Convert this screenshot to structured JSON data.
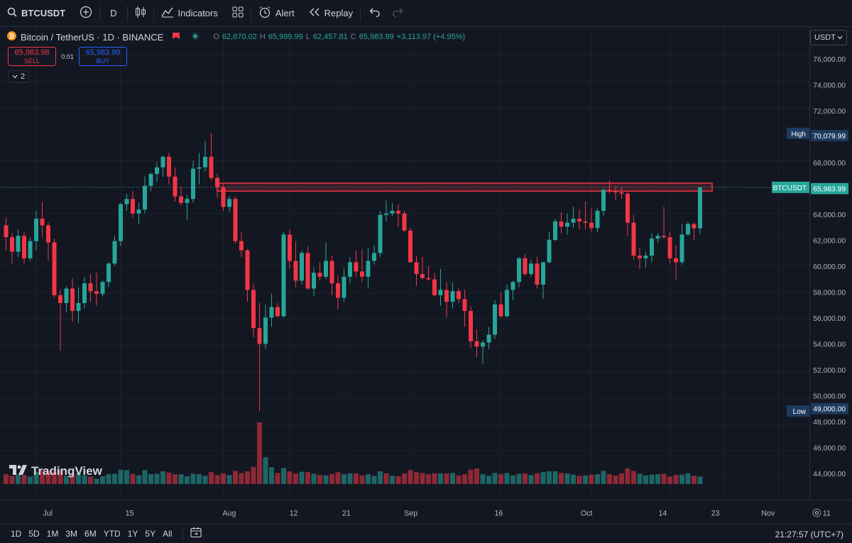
{
  "toolbar": {
    "symbol": "BTCUSDT",
    "interval": "D",
    "indicators_label": "Indicators",
    "alert_label": "Alert",
    "replay_label": "Replay"
  },
  "legend": {
    "title": "Bitcoin / TetherUS · 1D · BINANCE",
    "o_label": "O",
    "o": "62,870.02",
    "h_label": "H",
    "h": "65,999.99",
    "l_label": "L",
    "l": "62,457.81",
    "c_label": "C",
    "c": "65,983.99",
    "change": "+3,113.97 (+4.95%)"
  },
  "trade": {
    "sell_price": "65,983.98",
    "sell_label": "SELL",
    "spread": "0.01",
    "buy_price": "65,983.99",
    "buy_label": "BUY",
    "indicators_count": "2"
  },
  "currency": "USDT",
  "brand": "TradingView",
  "price_labels": {
    "high_label": "High",
    "high": "70,079.99",
    "current_label": "BTCUSDT",
    "current": "65,983.99",
    "low_label": "Low",
    "low": "49,000.00"
  },
  "colors": {
    "up": "#26a69a",
    "down": "#f23645",
    "background": "#131722",
    "accent": "#2962ff"
  },
  "bottom": {
    "timeframes": [
      "1D",
      "5D",
      "1M",
      "3M",
      "6M",
      "YTD",
      "1Y",
      "5Y",
      "All"
    ],
    "clock": "21:27:57 (UTC+7)"
  },
  "chart_data": {
    "type": "candlestick",
    "y_range": [
      43000,
      77500
    ],
    "y_ticks": [
      "44,000.00",
      "46,000.00",
      "48,000.00",
      "50,000.00",
      "52,000.00",
      "54,000.00",
      "56,000.00",
      "58,000.00",
      "60,000.00",
      "62,000.00",
      "64,000.00",
      "66,000.00",
      "68,000.00",
      "72,000.00",
      "74,000.00",
      "76,000.00"
    ],
    "x_ticks": [
      {
        "label": "Jul",
        "i": 5
      },
      {
        "label": "15",
        "i": 19
      },
      {
        "label": "Aug",
        "i": 36
      },
      {
        "label": "12",
        "i": 47
      },
      {
        "label": "21",
        "i": 56
      },
      {
        "label": "Sep",
        "i": 67
      },
      {
        "label": "16",
        "i": 82
      },
      {
        "label": "Oct",
        "i": 97
      },
      {
        "label": "14",
        "i": 110
      },
      {
        "label": "23",
        "i": 119
      },
      {
        "label": "Nov",
        "i": 128
      },
      {
        "label": "11",
        "i": 138
      }
    ],
    "resistance_zone": {
      "from": 65700,
      "to": 66300,
      "start_i": 35,
      "end_i": 117
    },
    "candles": [
      [
        63100,
        63700,
        61200,
        62200
      ],
      [
        62200,
        62500,
        60200,
        61100
      ],
      [
        61100,
        62800,
        60700,
        62300
      ],
      [
        62300,
        62600,
        60200,
        60600
      ],
      [
        60600,
        62200,
        60400,
        61900
      ],
      [
        61900,
        64200,
        61200,
        63600
      ],
      [
        63600,
        64900,
        62200,
        63100
      ],
      [
        63100,
        63300,
        60400,
        61800
      ],
      [
        61800,
        62100,
        57600,
        57800
      ],
      [
        57800,
        58200,
        53600,
        57200
      ],
      [
        57200,
        58500,
        56500,
        58300
      ],
      [
        58300,
        59100,
        55800,
        56600
      ],
      [
        56600,
        58400,
        55700,
        57200
      ],
      [
        57200,
        59200,
        56800,
        58700
      ],
      [
        58700,
        59400,
        57300,
        58100
      ],
      [
        58100,
        59500,
        57000,
        57900
      ],
      [
        57900,
        58900,
        57700,
        58800
      ],
      [
        58800,
        60300,
        58400,
        60200
      ],
      [
        60200,
        62300,
        60000,
        61900
      ],
      [
        61900,
        64800,
        61500,
        64700
      ],
      [
        64700,
        65500,
        64200,
        65100
      ],
      [
        65100,
        65700,
        63700,
        64000
      ],
      [
        64000,
        64800,
        63200,
        64300
      ],
      [
        64300,
        66800,
        64000,
        66100
      ],
      [
        66100,
        67100,
        65700,
        67000
      ],
      [
        67000,
        67900,
        66400,
        67500
      ],
      [
        67500,
        68400,
        66800,
        68300
      ],
      [
        68300,
        68600,
        66200,
        66800
      ],
      [
        66800,
        67500,
        64900,
        65300
      ],
      [
        65300,
        66000,
        64600,
        64800
      ],
      [
        64800,
        65400,
        63500,
        65100
      ],
      [
        65100,
        68000,
        64800,
        67400
      ],
      [
        67400,
        68600,
        66200,
        67500
      ],
      [
        67500,
        69500,
        67200,
        68300
      ],
      [
        68300,
        70080,
        66500,
        66700
      ],
      [
        66700,
        67000,
        65200,
        66000
      ],
      [
        66000,
        66200,
        64200,
        64500
      ],
      [
        64500,
        65300,
        64100,
        65100
      ],
      [
        65100,
        65300,
        61700,
        61900
      ],
      [
        61900,
        62600,
        60700,
        61200
      ],
      [
        61200,
        61300,
        57300,
        58200
      ],
      [
        58200,
        58700,
        54600,
        55300
      ],
      [
        55300,
        57200,
        49000,
        54100
      ],
      [
        54100,
        57100,
        53700,
        56100
      ],
      [
        56100,
        57900,
        55400,
        56900
      ],
      [
        56900,
        57200,
        56100,
        56200
      ],
      [
        56200,
        62600,
        56100,
        62400
      ],
      [
        62400,
        62800,
        59800,
        60400
      ],
      [
        60400,
        61900,
        58400,
        58900
      ],
      [
        58900,
        61200,
        58600,
        61000
      ],
      [
        61000,
        61500,
        58200,
        58300
      ],
      [
        58300,
        59900,
        57700,
        59500
      ],
      [
        59500,
        60300,
        58900,
        59200
      ],
      [
        59200,
        61800,
        59000,
        60400
      ],
      [
        60400,
        60800,
        57800,
        58700
      ],
      [
        58700,
        59300,
        56700,
        57600
      ],
      [
        57600,
        59800,
        57300,
        59200
      ],
      [
        59200,
        60700,
        58700,
        60300
      ],
      [
        60300,
        61200,
        59200,
        59600
      ],
      [
        59600,
        61300,
        58800,
        59200
      ],
      [
        59200,
        61400,
        58300,
        60400
      ],
      [
        60400,
        61600,
        60100,
        61000
      ],
      [
        61000,
        64200,
        60700,
        63900
      ],
      [
        63900,
        65000,
        63400,
        64000
      ],
      [
        64000,
        64800,
        63800,
        64200
      ],
      [
        64200,
        64700,
        63000,
        64000
      ],
      [
        64000,
        64200,
        62600,
        62700
      ],
      [
        62700,
        62900,
        60400,
        60300
      ],
      [
        60300,
        60800,
        58500,
        59400
      ],
      [
        59400,
        60700,
        59000,
        59100
      ],
      [
        59100,
        60000,
        58900,
        59000
      ],
      [
        59000,
        59500,
        57700,
        57800
      ],
      [
        57800,
        59800,
        57000,
        58200
      ],
      [
        58200,
        58800,
        56100,
        57300
      ],
      [
        57300,
        58800,
        56800,
        58100
      ],
      [
        58100,
        58300,
        57200,
        57500
      ],
      [
        57500,
        58200,
        55400,
        56600
      ],
      [
        56600,
        57000,
        53800,
        54300
      ],
      [
        54300,
        55200,
        53100,
        53900
      ],
      [
        53900,
        54400,
        52600,
        54200
      ],
      [
        54200,
        55400,
        53700,
        54800
      ],
      [
        54800,
        57400,
        54500,
        57100
      ],
      [
        57100,
        58000,
        56100,
        56200
      ],
      [
        56200,
        58600,
        56100,
        58200
      ],
      [
        58200,
        58900,
        57400,
        58800
      ],
      [
        58800,
        60700,
        58400,
        60600
      ],
      [
        60600,
        60900,
        59300,
        59400
      ],
      [
        59400,
        60500,
        59200,
        60200
      ],
      [
        60200,
        60700,
        58300,
        58600
      ],
      [
        58600,
        60300,
        57500,
        60300
      ],
      [
        60300,
        62600,
        60200,
        62000
      ],
      [
        62000,
        63600,
        61900,
        63400
      ],
      [
        63400,
        64100,
        62500,
        63000
      ],
      [
        63000,
        64000,
        62400,
        63300
      ],
      [
        63300,
        64500,
        62900,
        63600
      ],
      [
        63600,
        64300,
        62800,
        63400
      ],
      [
        63400,
        64900,
        62800,
        63300
      ],
      [
        63300,
        64400,
        62600,
        62900
      ],
      [
        62900,
        64400,
        62600,
        64200
      ],
      [
        64200,
        65900,
        63800,
        65800
      ],
      [
        65800,
        66500,
        65500,
        65700
      ],
      [
        65700,
        66100,
        65000,
        65600
      ],
      [
        65600,
        66000,
        65100,
        65500
      ],
      [
        65500,
        65700,
        62300,
        63300
      ],
      [
        63300,
        63900,
        60500,
        60800
      ],
      [
        60800,
        61400,
        59800,
        60600
      ],
      [
        60600,
        61100,
        59900,
        60800
      ],
      [
        60800,
        62500,
        60300,
        62100
      ],
      [
        62100,
        62500,
        61800,
        62300
      ],
      [
        62300,
        64500,
        62100,
        62200
      ],
      [
        62200,
        62600,
        60200,
        60600
      ],
      [
        60600,
        61600,
        59000,
        60300
      ],
      [
        60300,
        63200,
        60100,
        62400
      ],
      [
        62400,
        63400,
        62300,
        63200
      ],
      [
        63200,
        63300,
        62000,
        62870
      ],
      [
        62870,
        66000,
        62460,
        65984
      ]
    ],
    "volumes": [
      [
        24,
        0
      ],
      [
        20,
        0
      ],
      [
        23,
        1
      ],
      [
        22,
        0
      ],
      [
        18,
        1
      ],
      [
        30,
        1
      ],
      [
        34,
        0
      ],
      [
        31,
        0
      ],
      [
        30,
        0
      ],
      [
        34,
        0
      ],
      [
        20,
        1
      ],
      [
        24,
        0
      ],
      [
        26,
        1
      ],
      [
        21,
        1
      ],
      [
        18,
        0
      ],
      [
        13,
        1
      ],
      [
        19,
        1
      ],
      [
        24,
        1
      ],
      [
        25,
        1
      ],
      [
        35,
        1
      ],
      [
        34,
        1
      ],
      [
        25,
        0
      ],
      [
        21,
        1
      ],
      [
        34,
        1
      ],
      [
        24,
        1
      ],
      [
        25,
        1
      ],
      [
        31,
        1
      ],
      [
        28,
        0
      ],
      [
        24,
        0
      ],
      [
        24,
        1
      ],
      [
        19,
        1
      ],
      [
        25,
        1
      ],
      [
        24,
        1
      ],
      [
        20,
        1
      ],
      [
        29,
        0
      ],
      [
        22,
        0
      ],
      [
        26,
        0
      ],
      [
        22,
        1
      ],
      [
        32,
        0
      ],
      [
        27,
        0
      ],
      [
        31,
        0
      ],
      [
        42,
        0
      ],
      [
        150,
        0
      ],
      [
        65,
        1
      ],
      [
        41,
        1
      ],
      [
        27,
        0
      ],
      [
        39,
        1
      ],
      [
        31,
        0
      ],
      [
        26,
        0
      ],
      [
        30,
        1
      ],
      [
        29,
        0
      ],
      [
        25,
        1
      ],
      [
        22,
        0
      ],
      [
        21,
        1
      ],
      [
        24,
        0
      ],
      [
        29,
        0
      ],
      [
        24,
        1
      ],
      [
        26,
        1
      ],
      [
        26,
        0
      ],
      [
        21,
        0
      ],
      [
        24,
        1
      ],
      [
        20,
        1
      ],
      [
        31,
        1
      ],
      [
        26,
        0
      ],
      [
        20,
        1
      ],
      [
        19,
        0
      ],
      [
        26,
        0
      ],
      [
        34,
        0
      ],
      [
        29,
        0
      ],
      [
        27,
        0
      ],
      [
        24,
        0
      ],
      [
        26,
        0
      ],
      [
        26,
        1
      ],
      [
        26,
        0
      ],
      [
        27,
        1
      ],
      [
        21,
        0
      ],
      [
        24,
        0
      ],
      [
        35,
        0
      ],
      [
        38,
        0
      ],
      [
        24,
        1
      ],
      [
        20,
        1
      ],
      [
        27,
        1
      ],
      [
        24,
        0
      ],
      [
        27,
        1
      ],
      [
        21,
        1
      ],
      [
        25,
        1
      ],
      [
        26,
        0
      ],
      [
        22,
        1
      ],
      [
        26,
        0
      ],
      [
        29,
        1
      ],
      [
        31,
        1
      ],
      [
        31,
        1
      ],
      [
        27,
        0
      ],
      [
        26,
        1
      ],
      [
        23,
        1
      ],
      [
        20,
        0
      ],
      [
        21,
        1
      ],
      [
        23,
        0
      ],
      [
        24,
        1
      ],
      [
        32,
        1
      ],
      [
        24,
        0
      ],
      [
        21,
        0
      ],
      [
        26,
        0
      ],
      [
        38,
        0
      ],
      [
        32,
        0
      ],
      [
        25,
        1
      ],
      [
        21,
        1
      ],
      [
        23,
        1
      ],
      [
        24,
        1
      ],
      [
        25,
        0
      ],
      [
        18,
        0
      ],
      [
        22,
        0
      ],
      [
        23,
        1
      ],
      [
        26,
        1
      ],
      [
        20,
        0
      ],
      [
        18,
        1
      ]
    ]
  }
}
